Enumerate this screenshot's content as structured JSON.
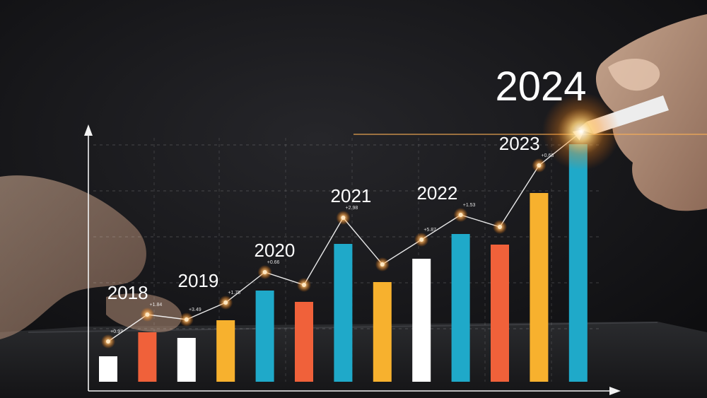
{
  "chart_data": {
    "type": "bar",
    "title": "2024",
    "bars": [
      {
        "value": 36,
        "color": "#ffffff"
      },
      {
        "value": 70,
        "color": "#f0613a"
      },
      {
        "value": 62,
        "color": "#ffffff"
      },
      {
        "value": 87,
        "color": "#f7b12e"
      },
      {
        "value": 129,
        "color": "#1fa9c9"
      },
      {
        "value": 113,
        "color": "#f0613a"
      },
      {
        "value": 195,
        "color": "#1fa9c9"
      },
      {
        "value": 141,
        "color": "#f7b12e"
      },
      {
        "value": 174,
        "color": "#ffffff"
      },
      {
        "value": 209,
        "color": "#1fa9c9"
      },
      {
        "value": 194,
        "color": "#f0613a"
      },
      {
        "value": 267,
        "color": "#f7b12e"
      },
      {
        "value": 336,
        "color": "#1fa9c9"
      }
    ],
    "trend_line": [
      57,
      95,
      88,
      112,
      155,
      137,
      232,
      166,
      201,
      236,
      219,
      306,
      350
    ],
    "year_labels": [
      {
        "text": "2018",
        "bar": 0.5
      },
      {
        "text": "2019",
        "bar": 2.3
      },
      {
        "text": "2020",
        "bar": 4.25
      },
      {
        "text": "2021",
        "bar": 6.2
      },
      {
        "text": "2022",
        "bar": 8.4
      },
      {
        "text": "2023",
        "bar": 10.5
      }
    ],
    "change_labels": [
      {
        "text": "+0.97",
        "point": 0
      },
      {
        "text": "+1.84",
        "point": 1
      },
      {
        "text": "+3.49",
        "point": 2
      },
      {
        "text": "+1.75",
        "point": 3
      },
      {
        "text": "+0.66",
        "point": 4
      },
      {
        "text": "+2.98",
        "point": 6
      },
      {
        "text": "+5.87",
        "point": 8
      },
      {
        "text": "+1.53",
        "point": 9
      },
      {
        "text": "+0.68",
        "point": 11
      }
    ],
    "ylim": [
      0,
      380
    ],
    "grid": true
  }
}
